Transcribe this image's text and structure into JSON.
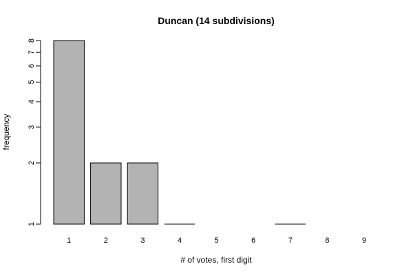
{
  "chart_data": {
    "type": "bar",
    "title": "Duncan (14 subdivisions)",
    "xlabel": "# of votes, first digit",
    "ylabel": "frequency",
    "categories": [
      "1",
      "2",
      "3",
      "4",
      "5",
      "6",
      "7",
      "8",
      "9"
    ],
    "values": [
      8,
      2,
      2,
      1,
      0,
      0,
      1,
      0,
      0
    ],
    "y_scale": "log",
    "y_ticks": [
      1,
      2,
      3,
      4,
      5,
      6,
      7,
      8
    ],
    "ylim": [
      1,
      8
    ],
    "bar_color": "#b3b3b3",
    "grid": false,
    "legend": "none"
  }
}
